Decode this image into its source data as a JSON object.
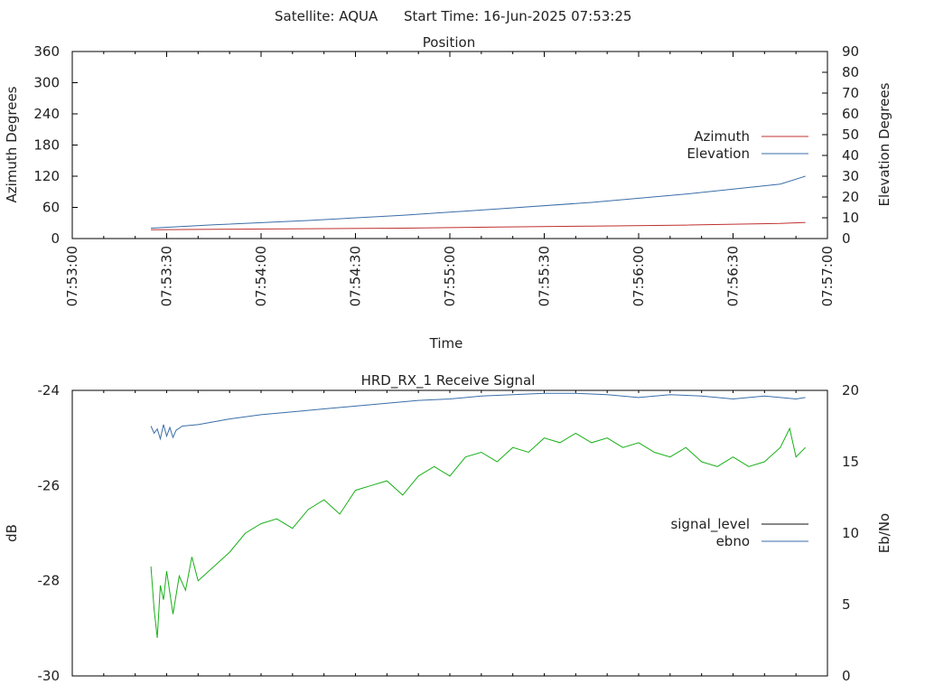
{
  "header": {
    "satellite_text": "Satellite: AQUA",
    "start_time_text": "Start Time: 16-Jun-2025 07:53:25"
  },
  "colors": {
    "azimuth": "#c03030",
    "elevation": "#3a6ea8",
    "signal_level": "#111111",
    "ebno_blue": "#3a6ea8",
    "signal_green": "#18b018",
    "axis": "#000000"
  },
  "chart_data": [
    {
      "type": "line",
      "title": "Position",
      "xlabel": "Time",
      "ylabel": "Azimuth Degrees",
      "y2label": "Elevation Degrees",
      "xlim": [
        "07:53:00",
        "07:57:00"
      ],
      "ylim": [
        0,
        360
      ],
      "y2lim": [
        0,
        90
      ],
      "x_ticks": [
        "07:53:00",
        "07:53:30",
        "07:54:00",
        "07:54:30",
        "07:55:00",
        "07:55:30",
        "07:56:00",
        "07:56:30",
        "07:57:00"
      ],
      "y_ticks": [
        0,
        60,
        120,
        180,
        240,
        300,
        360
      ],
      "y2_ticks": [
        0,
        10,
        20,
        30,
        40,
        50,
        60,
        70,
        80,
        90
      ],
      "legend_position": "right",
      "series": [
        {
          "name": "Azimuth",
          "axis": "left",
          "x": [
            "07:53:25",
            "07:53:45",
            "07:54:15",
            "07:54:45",
            "07:55:15",
            "07:55:45",
            "07:56:15",
            "07:56:45",
            "07:56:53"
          ],
          "y": [
            17,
            18,
            19,
            20,
            22,
            24,
            26,
            29,
            31
          ]
        },
        {
          "name": "Elevation",
          "axis": "right",
          "x": [
            "07:53:25",
            "07:53:45",
            "07:54:15",
            "07:54:45",
            "07:55:15",
            "07:55:45",
            "07:56:15",
            "07:56:45",
            "07:56:53"
          ],
          "y": [
            5.0,
            6.6,
            8.7,
            11.2,
            14.2,
            17.4,
            21.4,
            26.2,
            30.0
          ]
        }
      ]
    },
    {
      "type": "line",
      "title": "HRD_RX_1 Receive Signal",
      "xlabel": "",
      "ylabel": "dB",
      "y2label": "Eb/No",
      "xlim": [
        "07:53:00",
        "07:57:00"
      ],
      "ylim": [
        -30,
        -24
      ],
      "y2lim": [
        0,
        20
      ],
      "y_ticks": [
        -30,
        -28,
        -26,
        -24
      ],
      "y2_ticks": [
        0,
        5,
        10,
        15,
        20
      ],
      "legend_position": "right",
      "series": [
        {
          "name": "signal_level",
          "axis": "left",
          "x": [],
          "y": []
        },
        {
          "name": "ebno",
          "axis": "right",
          "x": [
            "07:53:25",
            "07:53:26",
            "07:53:27",
            "07:53:28",
            "07:53:29",
            "07:53:30",
            "07:53:31",
            "07:53:32",
            "07:53:33",
            "07:53:35",
            "07:53:40",
            "07:53:45",
            "07:53:50",
            "07:54:00",
            "07:54:10",
            "07:54:20",
            "07:54:30",
            "07:54:40",
            "07:54:50",
            "07:55:00",
            "07:55:10",
            "07:55:20",
            "07:55:30",
            "07:55:40",
            "07:55:50",
            "07:56:00",
            "07:56:10",
            "07:56:20",
            "07:56:30",
            "07:56:40",
            "07:56:50",
            "07:56:53"
          ],
          "y": [
            17.5,
            17.0,
            17.3,
            16.6,
            17.6,
            16.8,
            17.4,
            16.7,
            17.2,
            17.5,
            17.6,
            17.8,
            18.0,
            18.3,
            18.5,
            18.7,
            18.9,
            19.1,
            19.3,
            19.4,
            19.6,
            19.7,
            19.8,
            19.8,
            19.7,
            19.5,
            19.7,
            19.6,
            19.4,
            19.6,
            19.4,
            19.5
          ]
        },
        {
          "name": "",
          "axis": "left",
          "x": [
            "07:53:25",
            "07:53:26",
            "07:53:27",
            "07:53:28",
            "07:53:29",
            "07:53:30",
            "07:53:32",
            "07:53:34",
            "07:53:36",
            "07:53:38",
            "07:53:40",
            "07:53:45",
            "07:53:50",
            "07:53:55",
            "07:54:00",
            "07:54:05",
            "07:54:10",
            "07:54:15",
            "07:54:20",
            "07:54:25",
            "07:54:30",
            "07:54:35",
            "07:54:40",
            "07:54:45",
            "07:54:50",
            "07:54:55",
            "07:55:00",
            "07:55:05",
            "07:55:10",
            "07:55:15",
            "07:55:20",
            "07:55:25",
            "07:55:30",
            "07:55:35",
            "07:55:40",
            "07:55:45",
            "07:55:50",
            "07:55:55",
            "07:56:00",
            "07:56:05",
            "07:56:10",
            "07:56:15",
            "07:56:20",
            "07:56:25",
            "07:56:30",
            "07:56:35",
            "07:56:40",
            "07:56:45",
            "07:56:48",
            "07:56:50",
            "07:56:53"
          ],
          "y": [
            -27.7,
            -28.6,
            -29.2,
            -28.1,
            -28.4,
            -27.8,
            -28.7,
            -27.9,
            -28.2,
            -27.5,
            -28.0,
            -27.7,
            -27.4,
            -27.0,
            -26.8,
            -26.7,
            -26.9,
            -26.5,
            -26.3,
            -26.6,
            -26.1,
            -26.0,
            -25.9,
            -26.2,
            -25.8,
            -25.6,
            -25.8,
            -25.4,
            -25.3,
            -25.5,
            -25.2,
            -25.3,
            -25.0,
            -25.1,
            -24.9,
            -25.1,
            -25.0,
            -25.2,
            -25.1,
            -25.3,
            -25.4,
            -25.2,
            -25.5,
            -25.6,
            -25.4,
            -25.6,
            -25.5,
            -25.2,
            -24.8,
            -25.4,
            -25.2
          ]
        }
      ]
    }
  ]
}
